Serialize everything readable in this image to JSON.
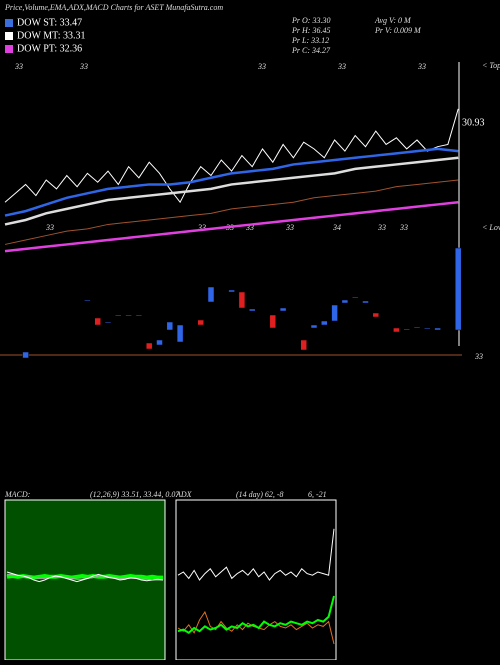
{
  "header": {
    "title": "Price,Volume,EMA,ADX,MACD Charts for ASET MunafaSutra.com"
  },
  "legend": [
    {
      "text": "DOW ST: 33.47",
      "color": "#3a6fe0"
    },
    {
      "text": "DOW MT: 33.31",
      "color": "#ffffff"
    },
    {
      "text": "DOW PT: 32.36",
      "color": "#e040e0"
    }
  ],
  "info": [
    "Pr  O: 33.30",
    "Pr  H: 36.45",
    "Pr  L: 33.12",
    "Pr  C: 34.27",
    "Avg V: 0  M",
    "Pr  V: 0.009 M"
  ],
  "top_labels": [
    "33",
    "33",
    "33",
    "33",
    "33"
  ],
  "bottom_labels": [
    "33",
    "33",
    "33",
    "33",
    "33",
    "34",
    "33",
    "33"
  ],
  "chart_data": [
    {
      "type": "line",
      "annotations": [
        "< Tops",
        "30.93",
        "< Lows",
        "33"
      ],
      "ylim": [
        28,
        37
      ],
      "x": [
        0,
        1,
        2,
        3,
        4,
        5,
        6,
        7,
        8,
        9,
        10,
        11,
        12,
        13,
        14,
        15,
        16,
        17,
        18,
        19,
        20,
        21,
        22,
        23,
        24,
        25,
        26,
        27,
        28,
        29,
        30,
        31,
        32,
        33,
        34,
        35,
        36,
        37,
        38,
        39,
        40,
        41,
        42,
        43,
        44
      ],
      "series": [
        {
          "color": "#ffffff",
          "values": [
            30.6,
            31.0,
            31.4,
            30.9,
            31.6,
            31.2,
            31.8,
            31.3,
            31.9,
            31.5,
            32.0,
            31.4,
            32.2,
            31.7,
            32.4,
            31.9,
            31.2,
            30.6,
            31.5,
            32.2,
            31.8,
            32.5,
            32.0,
            32.7,
            32.2,
            33.0,
            32.4,
            33.2,
            32.6,
            33.3,
            33.0,
            32.6,
            33.4,
            32.9,
            33.6,
            33.1,
            33.8,
            33.2,
            33.5,
            33.0,
            33.4,
            32.9,
            33.1,
            33.2,
            34.8
          ]
        }
      ]
    },
    {
      "type": "line",
      "ylim": [
        28,
        37
      ],
      "x": [
        0,
        2,
        4,
        6,
        8,
        10,
        12,
        14,
        16,
        18,
        20,
        22,
        24,
        26,
        28,
        30,
        32,
        34,
        36,
        38,
        40,
        42,
        44
      ],
      "series": [
        {
          "color": "#a0522d",
          "values": [
            28.7,
            28.9,
            29.1,
            29.3,
            29.4,
            29.6,
            29.7,
            29.8,
            29.9,
            30.0,
            30.1,
            30.3,
            30.4,
            30.5,
            30.6,
            30.8,
            30.9,
            31.0,
            31.1,
            31.3,
            31.4,
            31.5,
            31.6
          ]
        },
        {
          "color": "#e040e0",
          "values": [
            28.4,
            28.5,
            28.6,
            28.7,
            28.8,
            28.9,
            29.0,
            29.1,
            29.2,
            29.3,
            29.4,
            29.5,
            29.6,
            29.7,
            29.8,
            29.9,
            30.0,
            30.1,
            30.2,
            30.3,
            30.4,
            30.5,
            30.6
          ]
        },
        {
          "color": "#dddddd",
          "values": [
            29.6,
            29.8,
            30.1,
            30.3,
            30.5,
            30.7,
            30.8,
            30.9,
            31.0,
            31.1,
            31.2,
            31.4,
            31.5,
            31.6,
            31.7,
            31.8,
            31.9,
            32.1,
            32.2,
            32.3,
            32.4,
            32.5,
            32.6
          ]
        },
        {
          "color": "#2f66e8",
          "values": [
            30.0,
            30.2,
            30.5,
            30.8,
            31.0,
            31.2,
            31.3,
            31.4,
            31.4,
            31.5,
            31.7,
            31.9,
            32.0,
            32.1,
            32.3,
            32.4,
            32.5,
            32.6,
            32.7,
            32.8,
            32.9,
            33.0,
            32.9
          ]
        }
      ]
    },
    {
      "type": "candlestick",
      "ylim": [
        0,
        120
      ],
      "up_color": "#2f66e8",
      "down_color": "#e02020",
      "x": [
        2,
        8,
        9,
        10,
        11,
        12,
        13,
        14,
        15,
        16,
        17,
        19,
        20,
        22,
        23,
        24,
        26,
        27,
        29,
        30,
        31,
        32,
        33,
        34,
        35,
        36,
        38,
        39,
        40,
        41,
        42,
        44
      ],
      "open": [
        2,
        59,
        42,
        37,
        44,
        44,
        44,
        17,
        15,
        30,
        18,
        40,
        58,
        68,
        68,
        49,
        45,
        49,
        20,
        32,
        35,
        39,
        57,
        62,
        57,
        47,
        32,
        30,
        32,
        31,
        30,
        30
      ],
      "close": [
        8,
        60,
        35,
        38,
        45,
        45,
        45,
        11,
        20,
        38,
        35,
        35,
        73,
        70,
        52,
        51,
        32,
        52,
        10,
        35,
        39,
        55,
        60,
        63,
        59,
        43,
        28,
        31,
        33,
        32,
        32,
        112
      ]
    },
    {
      "type": "line",
      "title": "MACD:",
      "subtitle": "(12,26,9) 33.51, 33.44, 0.07",
      "ylim": [
        -1,
        1
      ],
      "series": [
        {
          "color": "#00ff00",
          "values": [
            0.04,
            0.05,
            0.04,
            0.05,
            0.04,
            0.03,
            0.04,
            0.05,
            0.04,
            0.04,
            0.05,
            0.04,
            0.03,
            0.04,
            0.05,
            0.04,
            0.05,
            0.04,
            0.04,
            0.05,
            0.04,
            0.03,
            0.04,
            0.05,
            0.04,
            0.04,
            0.03,
            0.04,
            0.03,
            0.03
          ]
        },
        {
          "color": "#aaaaaa",
          "values": [
            0.07,
            0.07,
            0.06,
            0.05,
            0.04,
            0.03,
            0.02,
            0.02,
            0.03,
            0.04,
            0.04,
            0.03,
            0.02,
            0.01,
            0.01,
            0.02,
            0.03,
            0.05,
            0.05,
            0.04,
            0.03,
            0.02,
            0.02,
            0.02,
            0.02,
            0.01,
            0.01,
            0.0,
            0.0,
            0.0
          ]
        },
        {
          "color": "#ffffff",
          "values": [
            0.1,
            0.08,
            0.06,
            0.05,
            0.03,
            0.0,
            -0.02,
            0.0,
            0.03,
            0.05,
            0.04,
            0.02,
            0.0,
            -0.02,
            0.0,
            0.02,
            0.05,
            0.07,
            0.05,
            0.03,
            0.02,
            0.0,
            0.01,
            0.03,
            0.02,
            0.0,
            -0.01,
            0.0,
            0.01,
            0.0
          ]
        }
      ]
    },
    {
      "type": "line",
      "title": "ADX",
      "subtitle": "(14 day) 62, -8",
      "note": "6, -21",
      "ylim": [
        0,
        100
      ],
      "series": [
        {
          "color": "#ffffff",
          "values": [
            53,
            55,
            51,
            56,
            50,
            54,
            57,
            52,
            55,
            58,
            51,
            54,
            56,
            53,
            57,
            52,
            55,
            50,
            54,
            56,
            53,
            55,
            52,
            57,
            54,
            53,
            55,
            54,
            53,
            82
          ]
        },
        {
          "color": "#e07020",
          "values": [
            20,
            18,
            22,
            17,
            25,
            30,
            21,
            19,
            24,
            20,
            18,
            22,
            19,
            23,
            21,
            20,
            19,
            22,
            24,
            21,
            20,
            22,
            19,
            21,
            23,
            20,
            22,
            21,
            24,
            10
          ]
        },
        {
          "color": "#00ff00",
          "values": [
            18,
            19,
            17,
            20,
            18,
            21,
            19,
            20,
            22,
            19,
            21,
            20,
            23,
            21,
            22,
            20,
            24,
            22,
            21,
            23,
            22,
            24,
            23,
            22,
            24,
            23,
            25,
            24,
            27,
            40
          ]
        }
      ]
    }
  ]
}
